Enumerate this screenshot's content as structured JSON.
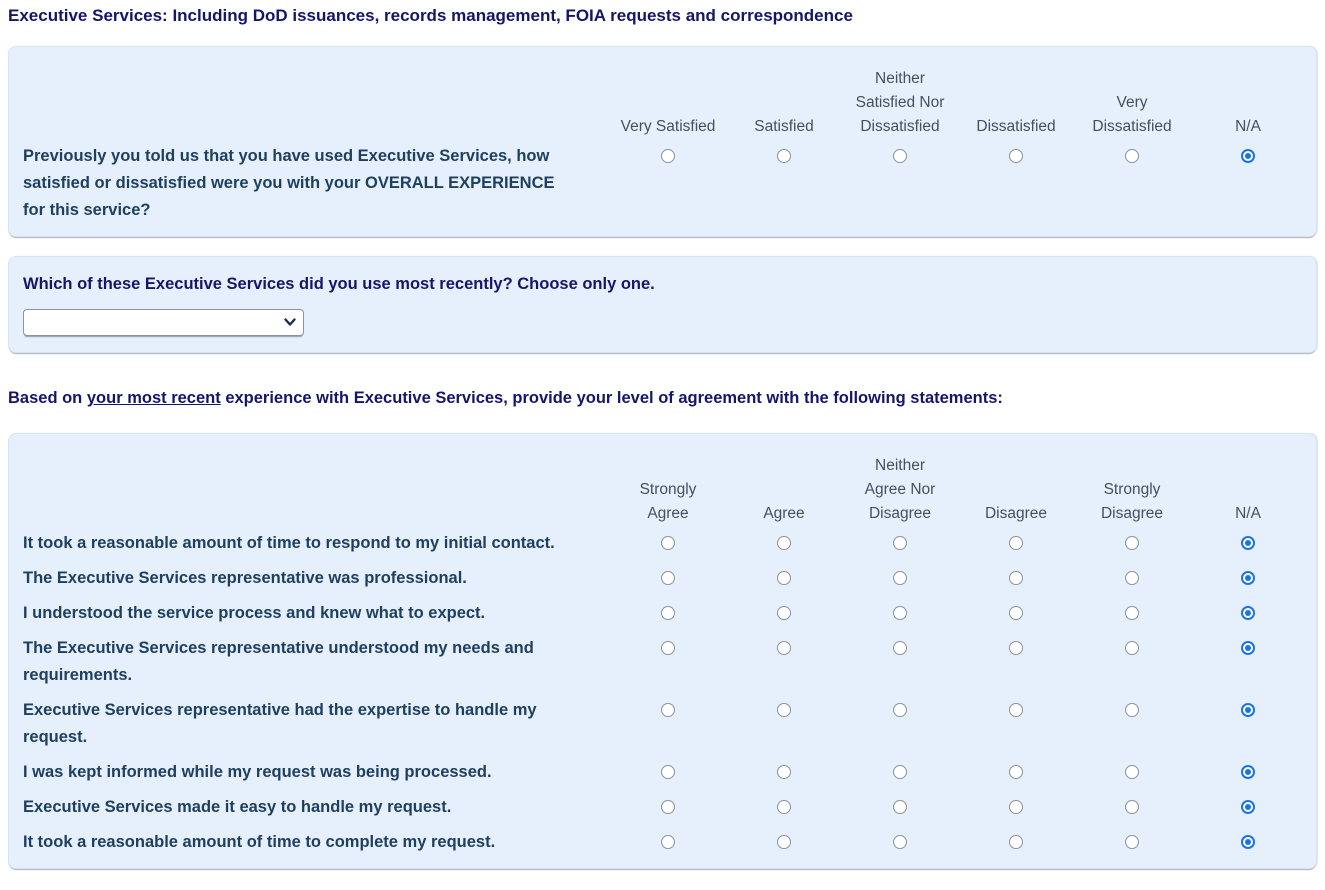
{
  "title": "Executive Services: Including DoD issuances, records management, FOIA requests and correspondence",
  "colors": {
    "panel_background": "#e6f0fc",
    "title_navy": "#15156b",
    "statement_navy": "#1e3f60",
    "header_gray": "#44515c",
    "radio_selected_blue": "#1a73e8"
  },
  "satisfaction": {
    "options": [
      {
        "label": "Very Satisfied",
        "lines": [
          "Very Satisfied"
        ]
      },
      {
        "label": "Satisfied",
        "lines": [
          "Satisfied"
        ]
      },
      {
        "label": "Neither Satisfied Nor Dissatisfied",
        "lines": [
          "Neither",
          "Satisfied Nor",
          "Dissatisfied"
        ]
      },
      {
        "label": "Dissatisfied",
        "lines": [
          "Dissatisfied"
        ]
      },
      {
        "label": "Very Dissatisfied",
        "lines": [
          "Very",
          "Dissatisfied"
        ]
      },
      {
        "label": "N/A",
        "lines": [
          "N/A"
        ]
      }
    ],
    "rows": [
      {
        "statement": "Previously you told us that you have used Executive Services, how satisfied or dissatisfied were you with your OVERALL EXPERIENCE for this service?",
        "selected": "N/A"
      }
    ]
  },
  "recent_service": {
    "question_prefix": "Which of these Executive Services did you use ",
    "question_bold": "most recently",
    "question_suffix": "? Choose only one.",
    "select_value": ""
  },
  "agreement_intro": {
    "prefix": "Based on ",
    "emphasis": "your most recent",
    "suffix": " experience with Executive Services, provide your level of agreement with the following statements:"
  },
  "agreement": {
    "options": [
      {
        "label": "Strongly Agree",
        "lines": [
          "Strongly",
          "Agree"
        ]
      },
      {
        "label": "Agree",
        "lines": [
          "Agree"
        ]
      },
      {
        "label": "Neither Agree Nor Disagree",
        "lines": [
          "Neither",
          "Agree Nor",
          "Disagree"
        ]
      },
      {
        "label": "Disagree",
        "lines": [
          "Disagree"
        ]
      },
      {
        "label": "Strongly Disagree",
        "lines": [
          "Strongly",
          "Disagree"
        ]
      },
      {
        "label": "N/A",
        "lines": [
          "N/A"
        ]
      }
    ],
    "rows": [
      {
        "statement": "It took a reasonable amount of time to respond to my initial contact.",
        "selected": "N/A"
      },
      {
        "statement": "The Executive Services representative was professional.",
        "selected": "N/A"
      },
      {
        "statement": "I understood the service process and knew what to expect.",
        "selected": "N/A"
      },
      {
        "statement": "The Executive Services representative understood my needs and requirements.",
        "selected": "N/A"
      },
      {
        "statement": "Executive Services representative had the expertise to handle my request.",
        "selected": "N/A"
      },
      {
        "statement": "I was kept informed while my request was being processed.",
        "selected": "N/A"
      },
      {
        "statement": "Executive Services made it easy to handle my request.",
        "selected": "N/A"
      },
      {
        "statement": "It took a reasonable amount of time to complete my request.",
        "selected": "N/A"
      }
    ]
  }
}
